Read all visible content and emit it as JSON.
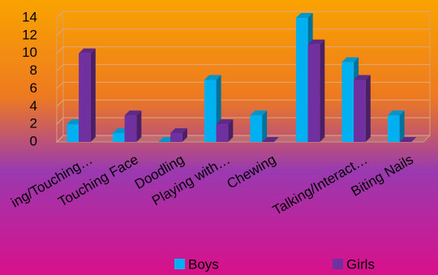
{
  "chart_data": {
    "type": "bar3d",
    "categories": [
      "ing/Touching…",
      "Touching Face",
      "Doodling",
      "Playing with…",
      "Chewing",
      null,
      "Talking/Interact…",
      "Biting Nails"
    ],
    "series": [
      {
        "name": "Boys",
        "color": "#00b0f0",
        "values": [
          2,
          1,
          0,
          7,
          3,
          14,
          9,
          3
        ]
      },
      {
        "name": "Girls",
        "color": "#7030a0",
        "values": [
          10,
          3,
          1,
          2,
          0,
          11,
          7,
          0
        ]
      }
    ],
    "ylim": [
      0,
      14
    ],
    "yticks": [
      0,
      2,
      4,
      6,
      8,
      10,
      12,
      14
    ],
    "grid": true,
    "legend": "bottom"
  }
}
